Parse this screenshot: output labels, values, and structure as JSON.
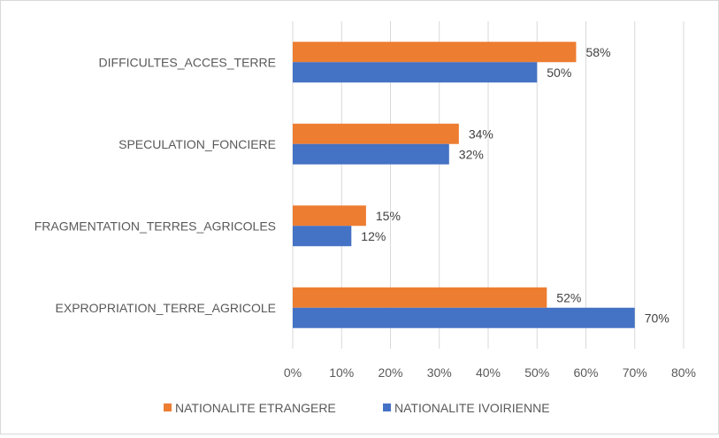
{
  "chart_data": {
    "type": "bar",
    "orientation": "horizontal",
    "categories": [
      "DIFFICULTES_ACCES_TERRE",
      "SPECULATION_FONCIERE",
      "FRAGMENTATION_TERRES_AGRICOLES",
      "EXPROPRIATION_TERRE_AGRICOLE"
    ],
    "series": [
      {
        "name": "NATIONALITE ETRANGERE",
        "color": "#ED7D31",
        "values": [
          58,
          34,
          15,
          52
        ],
        "labels": [
          "58%",
          "34%",
          "15%",
          "52%"
        ]
      },
      {
        "name": "NATIONALITE IVOIRIENNE",
        "color": "#4472C4",
        "values": [
          50,
          32,
          12,
          70
        ],
        "labels": [
          "50%",
          "32%",
          "12%",
          "70%"
        ]
      }
    ],
    "xlim": [
      0,
      80
    ],
    "ticks": [
      "0%",
      "10%",
      "20%",
      "30%",
      "40%",
      "50%",
      "60%",
      "70%",
      "80%"
    ],
    "grid": true,
    "legend_position": "bottom",
    "title": "",
    "xlabel": "",
    "ylabel": ""
  }
}
